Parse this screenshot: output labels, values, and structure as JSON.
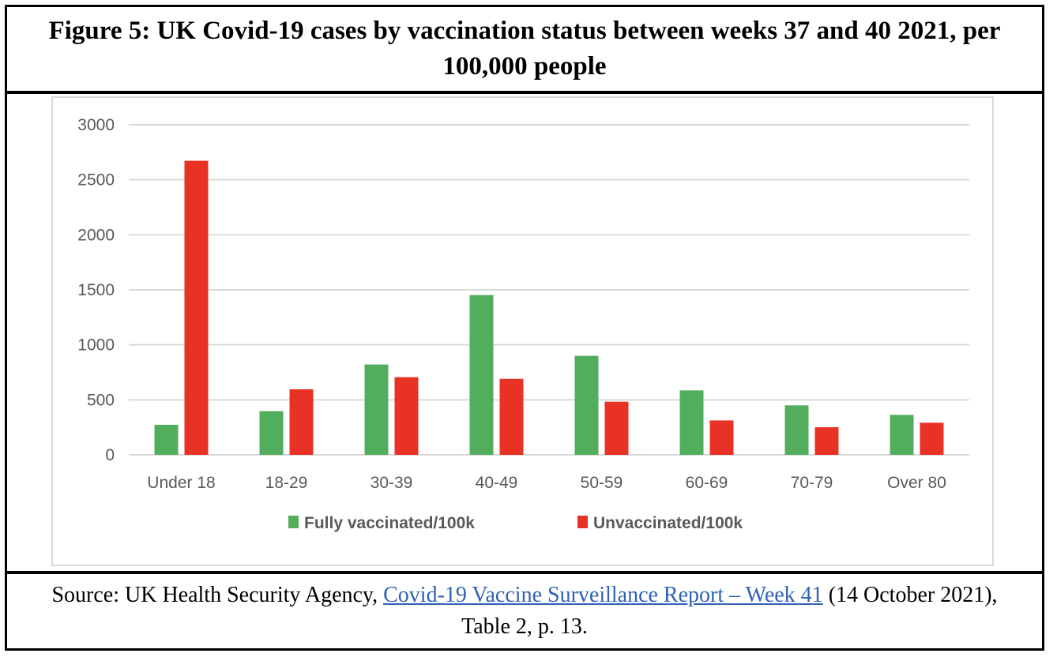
{
  "figure": {
    "title": "Figure 5: UK Covid-19 cases by vaccination status between weeks 37 and 40 2021, per 100,000 people",
    "source_prefix": "Source: UK Health Security Agency, ",
    "source_link": "Covid-19 Vaccine Surveillance Report – Week 41",
    "source_suffix": " (14 October 2021), Table 2, p. 13."
  },
  "colors": {
    "fully_vaccinated": "#52ad5c",
    "unvaccinated": "#e83226",
    "gridline": "#d9d9d9",
    "text": "#595959",
    "link": "#2f62b5"
  },
  "chart_data": {
    "type": "bar",
    "title": "",
    "xlabel": "",
    "ylabel": "",
    "categories": [
      "Under 18",
      "18-29",
      "30-39",
      "40-49",
      "50-59",
      "60-69",
      "70-79",
      "Over 80"
    ],
    "series": [
      {
        "name": "Fully vaccinated/100k",
        "color": "#52ad5c",
        "values": [
          273,
          397,
          821,
          1452,
          900,
          586,
          450,
          363
        ]
      },
      {
        "name": "Unvaccinated/100k",
        "color": "#e83226",
        "values": [
          2673,
          596,
          706,
          691,
          483,
          313,
          251,
          292
        ]
      }
    ],
    "ylim": [
      0,
      3000
    ],
    "yticks": [
      0,
      500,
      1000,
      1500,
      2000,
      2500,
      3000
    ],
    "grid": true,
    "legend": "bottom"
  }
}
